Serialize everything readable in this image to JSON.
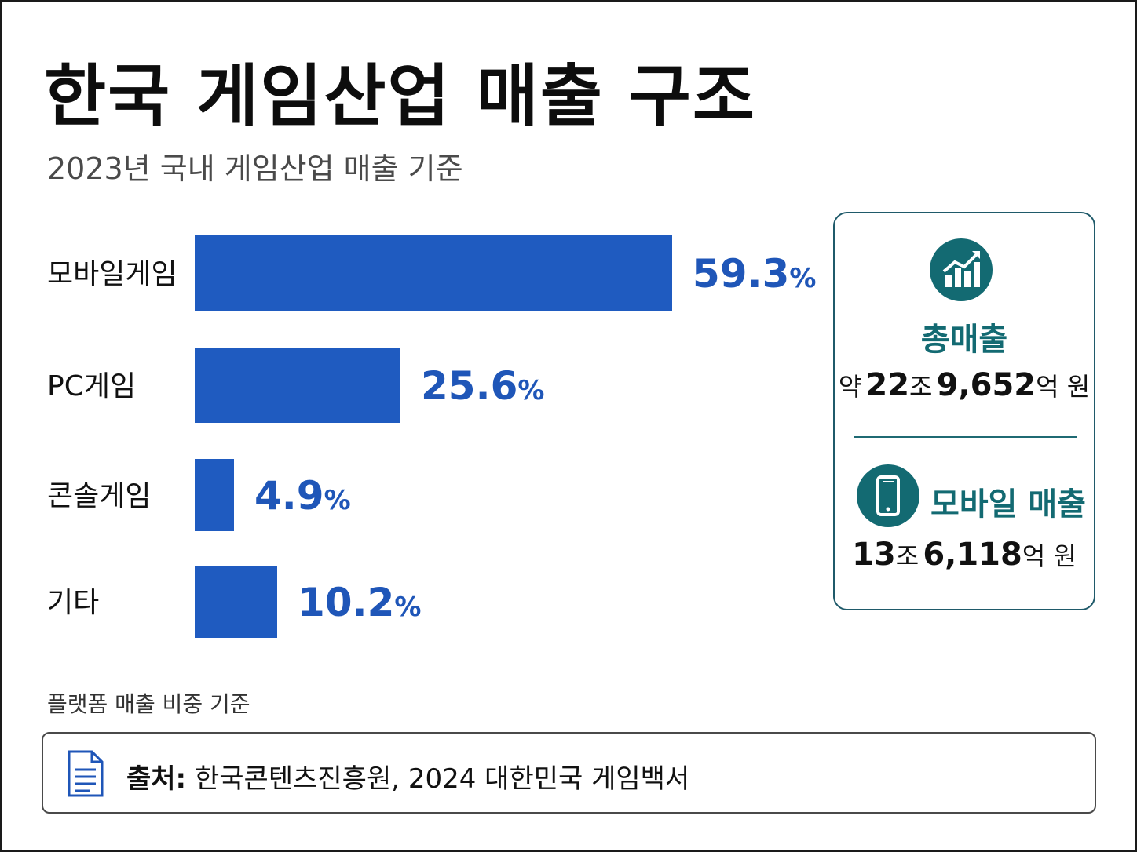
{
  "title": "한국 게임산업 매출 구조",
  "subtitle": "2023년 국내 게임산업 매출 기준",
  "chart_data": {
    "type": "bar",
    "orientation": "horizontal",
    "categories": [
      "모바일게임",
      "PC게임",
      "콘솔게임",
      "기타"
    ],
    "values": [
      59.3,
      25.6,
      4.9,
      10.2
    ],
    "value_labels": [
      "59.3",
      "25.6",
      "4.9",
      "10.2"
    ],
    "value_suffix": "%",
    "bar_color": "#1f5bc0",
    "label_color": "#1f56b8",
    "xlim": [
      0,
      59.3
    ],
    "grid": false,
    "legend": "none"
  },
  "footnote": "플랫폼 매출 비중 기준",
  "summary": {
    "total": {
      "icon": "chart-growth-icon",
      "heading": "총매출",
      "prefix": "약",
      "num1": "22",
      "unit1": "조",
      "num2": "9,652",
      "unit2": "억 원"
    },
    "mobile": {
      "icon": "smartphone-icon",
      "heading": "모바일 매출",
      "num1": "13",
      "unit1": "조",
      "num2": "6,118",
      "unit2": "억 원"
    },
    "accent_color": "#136a72"
  },
  "source": {
    "icon": "document-icon",
    "label": "출처:",
    "text": "한국콘텐츠진흥원, 2024 대한민국 게임백서"
  }
}
